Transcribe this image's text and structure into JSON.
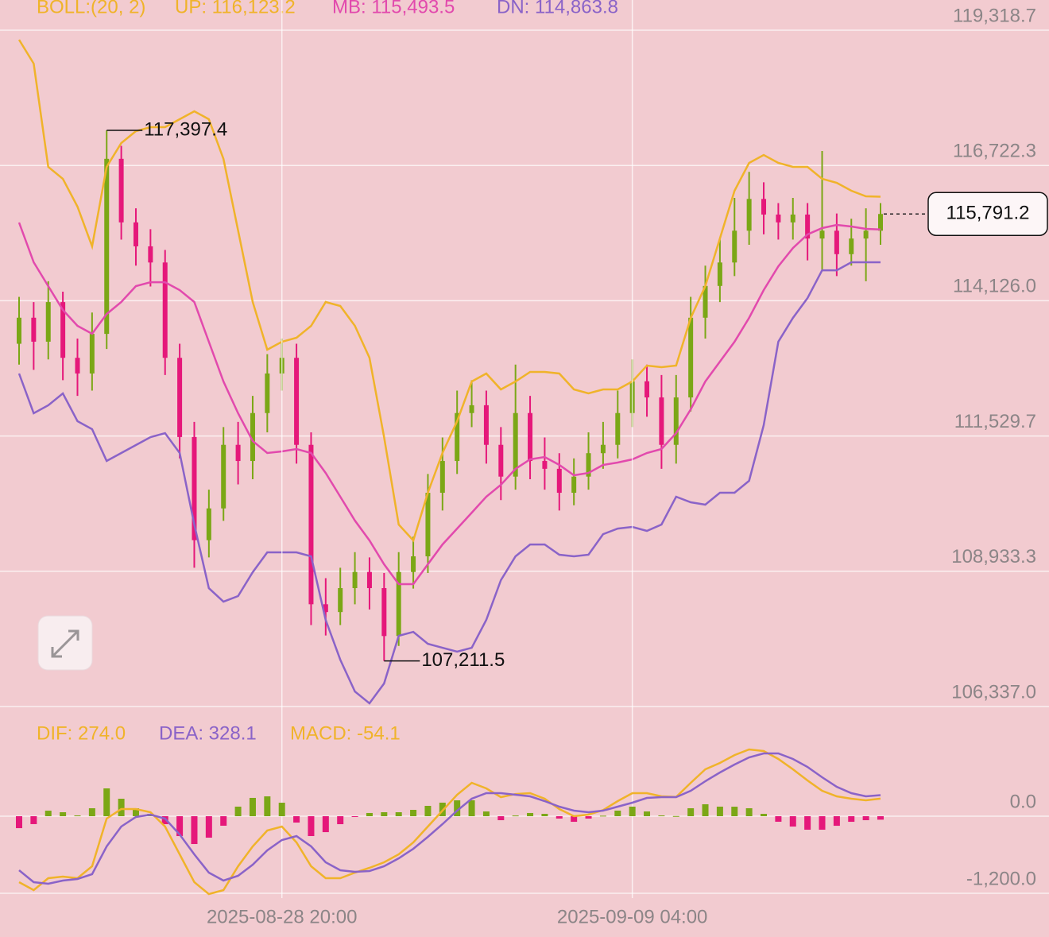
{
  "chart_data": [
    {
      "type": "candlestick",
      "indicator": "BOLL:(20, 2)",
      "ylim": [
        106337.0,
        119898.4
      ],
      "yticks": [
        {
          "value": 119318.7,
          "label": "119,318.7"
        },
        {
          "value": 116722.3,
          "label": "116,722.3"
        },
        {
          "value": 114126.0,
          "label": "114,126.0"
        },
        {
          "value": 111529.7,
          "label": "111,529.7"
        },
        {
          "value": 108933.3,
          "label": "108,933.3"
        },
        {
          "value": 106337.0,
          "label": "106,337.0"
        }
      ],
      "grid": true,
      "up_color": "#7ba716",
      "down_color": "#e5187a",
      "open": [
        113300,
        113800,
        113340,
        114100,
        113030,
        112730,
        113490,
        116850,
        115630,
        115170,
        114860,
        113030,
        111510,
        109530,
        110140,
        111360,
        111050,
        111970,
        112730,
        113030,
        111360,
        108300,
        108150,
        108610,
        108920,
        108610,
        107690,
        108920,
        109220,
        110440,
        111050,
        111970,
        112120,
        111360,
        110750,
        111970,
        111050,
        110900,
        110440,
        110750,
        111200,
        111360,
        111970,
        112580,
        112270,
        111360,
        112270,
        113800,
        114410,
        114860,
        115470,
        116080,
        115780,
        115630,
        115780,
        115320,
        115470,
        115020,
        115320,
        115470
      ],
      "high": [
        114200,
        114100,
        114500,
        114300,
        113400,
        113900,
        117397.4,
        117100,
        115900,
        115500,
        115100,
        113300,
        111800,
        110500,
        111700,
        111800,
        112300,
        113100,
        113400,
        113300,
        111600,
        108800,
        109000,
        109300,
        109200,
        108900,
        109300,
        109600,
        110800,
        111500,
        112400,
        112600,
        112400,
        111700,
        112900,
        112300,
        111500,
        111200,
        111100,
        111600,
        111800,
        112400,
        113000,
        112900,
        112700,
        112700,
        114200,
        114800,
        115300,
        116100,
        116600,
        116400,
        116000,
        116100,
        116000,
        117000,
        115800,
        115700,
        115900,
        116000
      ],
      "low": [
        112900,
        112800,
        113000,
        112600,
        112300,
        112400,
        113200,
        115300,
        114800,
        114400,
        112700,
        111100,
        109000,
        109200,
        109900,
        110600,
        110700,
        111600,
        112400,
        111000,
        107900,
        107700,
        107900,
        108300,
        108200,
        107211.5,
        107500,
        108600,
        108900,
        110100,
        110800,
        111700,
        111000,
        110300,
        110500,
        110700,
        110500,
        110100,
        110200,
        110500,
        110900,
        111100,
        111700,
        111900,
        110900,
        111000,
        112000,
        113400,
        114100,
        114600,
        115200,
        115400,
        115300,
        115300,
        114900,
        114700,
        114600,
        114800,
        114500,
        115200
      ],
      "close": [
        113800,
        113340,
        114100,
        113030,
        112730,
        113490,
        116850,
        115630,
        115170,
        114860,
        113030,
        111510,
        109530,
        110140,
        111360,
        111050,
        111970,
        112730,
        113030,
        111360,
        108300,
        108150,
        108610,
        108920,
        108610,
        107690,
        108920,
        109220,
        110440,
        111050,
        111970,
        112120,
        111360,
        110750,
        111970,
        111050,
        110900,
        110440,
        110750,
        111200,
        111360,
        111970,
        112580,
        112270,
        111360,
        112270,
        113800,
        114410,
        114860,
        115470,
        116080,
        115780,
        115630,
        115780,
        115320,
        115470,
        115020,
        115320,
        115470,
        115791.2
      ],
      "high_label": "117,397.4",
      "low_label": "107,211.5",
      "last_label": "115,791.2",
      "series": [
        {
          "name": "UP: 116,123.2",
          "color": "#f0b32a",
          "values": [
            119135,
            118678,
            116695,
            116466,
            115932,
            115169,
            116695,
            117152,
            117381,
            117457,
            117457,
            117610,
            117762,
            117610,
            116847,
            115474,
            114101,
            113186,
            113339,
            113415,
            113644,
            114101,
            114025,
            113644,
            113033,
            111508,
            109830,
            109525,
            110440,
            111203,
            111813,
            112576,
            112728,
            112423,
            112576,
            112759,
            112759,
            112728,
            112423,
            112347,
            112423,
            112423,
            112576,
            112881,
            112850,
            112881,
            113796,
            114406,
            115322,
            116237,
            116771,
            116923,
            116771,
            116695,
            116695,
            116466,
            116390,
            116237,
            116131,
            116123.2
          ]
        },
        {
          "name": "MB: 115,493.5",
          "color": "#e24aad",
          "values": [
            115627,
            114864,
            114406,
            113949,
            113644,
            113491,
            113872,
            114101,
            114406,
            114482,
            114482,
            114330,
            114101,
            113339,
            112576,
            111966,
            111432,
            111203,
            111233,
            111279,
            111203,
            110821,
            110364,
            109906,
            109525,
            109067,
            108686,
            108686,
            109067,
            109448,
            109753,
            110058,
            110364,
            110593,
            110898,
            111081,
            111127,
            110974,
            110776,
            110821,
            110974,
            111020,
            111081,
            111203,
            111279,
            111584,
            112042,
            112576,
            112957,
            113339,
            113796,
            114330,
            114787,
            115138,
            115398,
            115520,
            115581,
            115551,
            115505,
            115493.5
          ]
        },
        {
          "name": "DN: 114,863.8",
          "color": "#8a63c8",
          "values": [
            112728,
            111966,
            112118,
            112347,
            111813,
            111661,
            111050,
            111203,
            111356,
            111508,
            111584,
            111203,
            109830,
            108609,
            108350,
            108457,
            108915,
            109296,
            109296,
            109296,
            109220,
            107999,
            107236,
            106626,
            106398,
            106779,
            107694,
            107770,
            107541,
            107465,
            107389,
            107465,
            107999,
            108762,
            109220,
            109448,
            109448,
            109250,
            109220,
            109250,
            109646,
            109753,
            109784,
            109708,
            109830,
            110364,
            110257,
            110211,
            110440,
            110440,
            110669,
            111737,
            113339,
            113796,
            114177,
            114711,
            114711,
            114864,
            114864,
            114863.8
          ]
        }
      ]
    },
    {
      "type": "macd",
      "ylim": [
        -1274,
        1633
      ],
      "yticks": [
        {
          "value": 0,
          "label": "0.0"
        },
        {
          "value": -1200,
          "label": "-1,200.0"
        }
      ],
      "up_color": "#7ba716",
      "down_color": "#e5187a",
      "categories": [
        null,
        null,
        null,
        null,
        null,
        null,
        null,
        null,
        null,
        null,
        null,
        null,
        null,
        null,
        null,
        null,
        null,
        null,
        "2025-08-28 20:00",
        null,
        null,
        null,
        null,
        null,
        null,
        null,
        null,
        null,
        null,
        null,
        null,
        null,
        null,
        null,
        null,
        null,
        null,
        null,
        null,
        null,
        null,
        null,
        "2025-09-09 04:00",
        null,
        null,
        null,
        null,
        null,
        null,
        null,
        null,
        null,
        null,
        null,
        null,
        null,
        null,
        null,
        null,
        null
      ],
      "series": [
        {
          "name": "DIF: 274.0",
          "color": "#f0b32a",
          "values": [
            -1027,
            -1150,
            -965,
            -940,
            -965,
            -779,
            -37,
            111,
            111,
            62,
            -161,
            -594,
            -1027,
            -1212,
            -1150,
            -779,
            -470,
            -223,
            -161,
            -408,
            -779,
            -965,
            -965,
            -878,
            -804,
            -717,
            -594,
            -408,
            -161,
            87,
            334,
            520,
            433,
            297,
            345,
            359,
            272,
            111,
            0,
            25,
            95,
            235,
            359,
            359,
            309,
            300,
            520,
            730,
            829,
            952,
            1039,
            1014,
            891,
            730,
            557,
            396,
            309,
            272,
            247,
            274.0
          ]
        },
        {
          "name": "DEA: 328.1",
          "color": "#8a63c8",
          "values": [
            -841,
            -1027,
            -1051,
            -1002,
            -977,
            -903,
            -470,
            -161,
            -12,
            25,
            -37,
            -285,
            -594,
            -878,
            -1002,
            -928,
            -755,
            -532,
            -371,
            -309,
            -470,
            -717,
            -841,
            -866,
            -854,
            -779,
            -656,
            -507,
            -322,
            -124,
            87,
            272,
            359,
            359,
            334,
            309,
            235,
            148,
            87,
            62,
            87,
            148,
            210,
            285,
            297,
            297,
            396,
            544,
            680,
            804,
            915,
            977,
            977,
            891,
            767,
            606,
            458,
            359,
            309,
            328.1
          ]
        },
        {
          "name": "MACD: -54.1",
          "color": "#f0b32a",
          "values": [
            -186,
            -123,
            86,
            62,
            12,
            124,
            433,
            272,
            123,
            37,
            -124,
            -309,
            -433,
            -334,
            -148,
            149,
            285,
            309,
            210,
            -99,
            -309,
            -248,
            -124,
            -12,
            50,
            62,
            62,
            99,
            161,
            211,
            247,
            248,
            74,
            -62,
            11,
            50,
            37,
            -37,
            -87,
            -37,
            8,
            87,
            149,
            74,
            12,
            3,
            124,
            186,
            149,
            148,
            124,
            37,
            -86,
            -161,
            -210,
            -210,
            -149,
            -87,
            -62,
            -54.1
          ]
        }
      ]
    }
  ]
}
